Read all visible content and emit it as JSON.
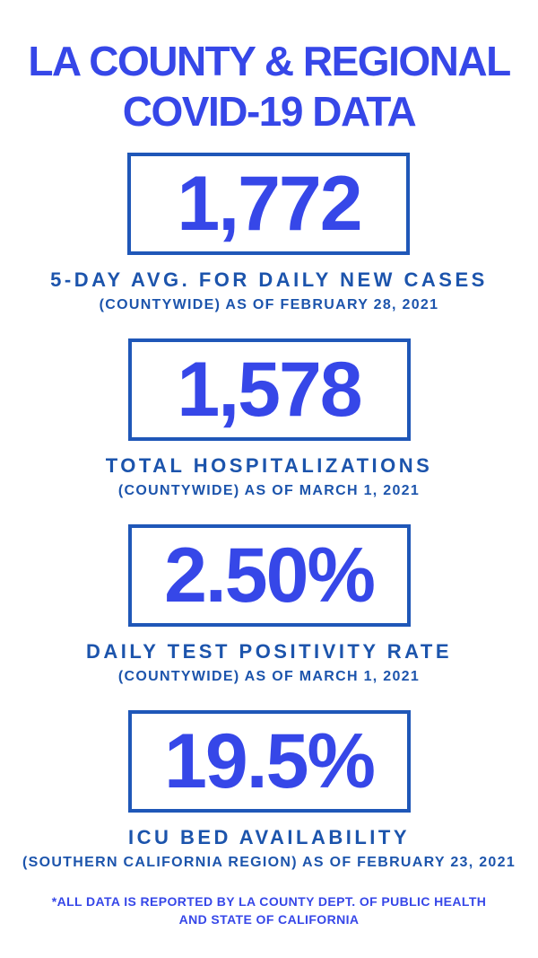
{
  "colors": {
    "bright_blue": "#3647e8",
    "navy_blue": "#1c54ac",
    "box_border_blue": "#1f57b8",
    "background": "#ffffff"
  },
  "title": {
    "text": "LA COUNTY & REGIONAL\nCOVID-19 DATA"
  },
  "stats": [
    {
      "value": "1,772",
      "label": "5-DAY AVG. FOR DAILY NEW CASES",
      "sublabel": "(COUNTYWIDE) AS OF FEBRUARY 28, 2021"
    },
    {
      "value": "1,578",
      "label": "TOTAL HOSPITALIZATIONS",
      "sublabel": "(COUNTYWIDE) AS OF MARCH 1, 2021"
    },
    {
      "value": "2.50%",
      "label": "DAILY TEST POSITIVITY RATE",
      "sublabel": "(COUNTYWIDE) AS OF MARCH 1, 2021"
    },
    {
      "value": "19.5%",
      "label": "ICU BED AVAILABILITY",
      "sublabel": "(SOUTHERN CALIFORNIA REGION) AS OF FEBRUARY 23, 2021"
    }
  ],
  "footnote": {
    "text": "*ALL DATA IS REPORTED BY LA COUNTY DEPT. OF PUBLIC HEALTH\nAND STATE OF CALIFORNIA"
  }
}
